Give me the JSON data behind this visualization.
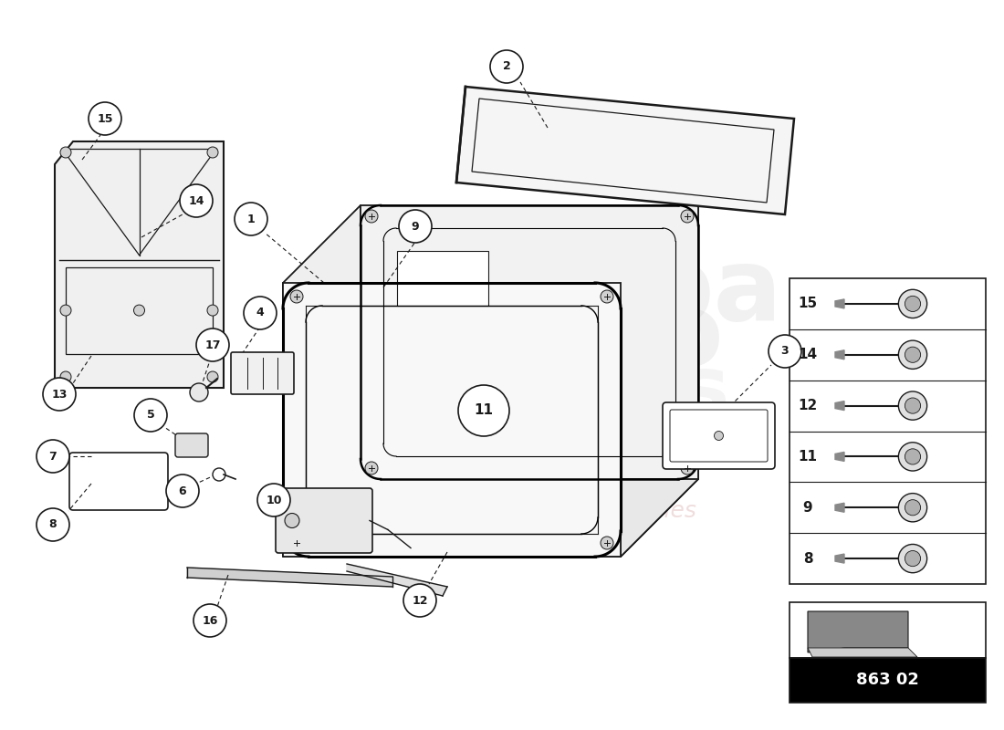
{
  "bg_color": "#ffffff",
  "line_color": "#1a1a1a",
  "catalog_code": "863 02",
  "legend_numbers": [
    15,
    14,
    12,
    11,
    9,
    8
  ],
  "watermark_color": "#c8c8c8"
}
